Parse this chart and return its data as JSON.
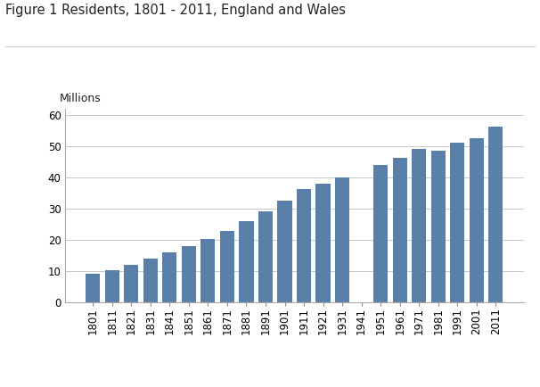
{
  "title": "Figure 1 Residents, 1801 - 2011, England and Wales",
  "ylabel": "Millions",
  "years": [
    1801,
    1811,
    1821,
    1831,
    1841,
    1851,
    1861,
    1871,
    1881,
    1891,
    1901,
    1911,
    1921,
    1931,
    1941,
    1951,
    1961,
    1971,
    1981,
    1991,
    2001,
    2011
  ],
  "values": [
    9.0,
    10.2,
    12.0,
    13.9,
    15.9,
    17.9,
    20.1,
    22.7,
    26.0,
    29.0,
    32.5,
    36.1,
    37.9,
    40.0,
    null,
    43.8,
    46.1,
    49.0,
    48.5,
    51.1,
    52.4,
    56.1
  ],
  "bar_color": "#5a7fa8",
  "ylim": [
    0,
    62
  ],
  "yticks": [
    0,
    10,
    20,
    30,
    40,
    50,
    60
  ],
  "bg_color": "#ffffff",
  "grid_color": "#c8c8c8",
  "title_fontsize": 10.5,
  "label_fontsize": 9,
  "tick_fontsize": 8.5
}
